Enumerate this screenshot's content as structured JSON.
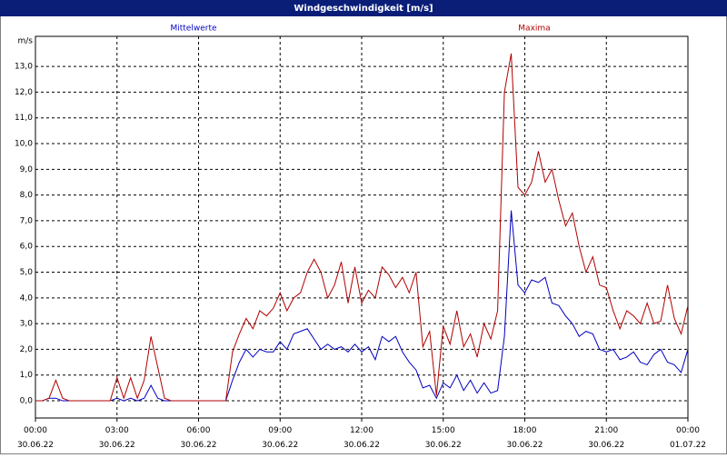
{
  "chart_data": {
    "type": "line",
    "title": "Windgeschwindigkeit [m/s]",
    "ylabel": "m/s",
    "x": [
      0,
      0.25,
      0.5,
      0.75,
      1,
      1.25,
      1.5,
      1.75,
      2,
      2.25,
      2.5,
      2.75,
      3,
      3.25,
      3.5,
      3.75,
      4,
      4.25,
      4.5,
      4.75,
      5,
      5.25,
      5.5,
      5.75,
      6,
      6.25,
      6.5,
      6.75,
      7,
      7.25,
      7.5,
      7.75,
      8,
      8.25,
      8.5,
      8.75,
      9,
      9.25,
      9.5,
      9.75,
      10,
      10.25,
      10.5,
      10.75,
      11,
      11.25,
      11.5,
      11.75,
      12,
      12.25,
      12.5,
      12.75,
      13,
      13.25,
      13.5,
      13.75,
      14,
      14.25,
      14.5,
      14.75,
      15,
      15.25,
      15.5,
      15.75,
      16,
      16.25,
      16.5,
      16.75,
      17,
      17.25,
      17.5,
      17.75,
      18,
      18.25,
      18.5,
      18.75,
      19,
      19.25,
      19.5,
      19.75,
      20,
      20.25,
      20.5,
      20.75,
      21,
      21.25,
      21.5,
      21.75,
      22,
      22.25,
      22.5,
      22.75,
      23,
      23.25,
      23.5,
      23.75,
      24
    ],
    "series": [
      {
        "name": "Mittelwerte",
        "color": "#0000c0",
        "values": [
          0,
          0,
          0.1,
          0.1,
          0,
          0,
          0,
          0,
          0,
          0,
          0,
          0,
          0.1,
          0,
          0.1,
          0,
          0.1,
          0.6,
          0.1,
          0,
          0,
          0,
          0,
          0,
          0,
          0,
          0,
          0,
          0,
          0.8,
          1.5,
          2.0,
          1.7,
          2.0,
          1.9,
          1.9,
          2.3,
          2.0,
          2.6,
          2.7,
          2.8,
          2.4,
          2.0,
          2.2,
          2.0,
          2.1,
          1.9,
          2.2,
          1.9,
          2.1,
          1.6,
          2.5,
          2.3,
          2.5,
          1.9,
          1.5,
          1.2,
          0.5,
          0.6,
          0.1,
          0.7,
          0.5,
          1.0,
          0.4,
          0.8,
          0.3,
          0.7,
          0.3,
          0.4,
          2.5,
          7.4,
          4.5,
          4.2,
          4.7,
          4.6,
          4.8,
          3.8,
          3.7,
          3.3,
          3.0,
          2.5,
          2.7,
          2.6,
          2.0,
          1.9,
          2.0,
          1.6,
          1.7,
          1.9,
          1.5,
          1.4,
          1.8,
          2.0,
          1.5,
          1.4,
          1.1,
          2.0
        ]
      },
      {
        "name": "Maxima",
        "color": "#b00000",
        "values": [
          0,
          0,
          0.1,
          0.8,
          0.1,
          0,
          0,
          0,
          0,
          0,
          0,
          0,
          0.9,
          0.1,
          0.9,
          0.1,
          0.8,
          2.5,
          1.3,
          0.1,
          0,
          0,
          0,
          0,
          0,
          0,
          0,
          0,
          0,
          1.9,
          2.6,
          3.2,
          2.8,
          3.5,
          3.3,
          3.6,
          4.2,
          3.5,
          4.0,
          4.2,
          5.0,
          5.5,
          5.0,
          4.0,
          4.5,
          5.4,
          3.8,
          5.2,
          3.8,
          4.3,
          4.0,
          5.2,
          4.9,
          4.4,
          4.8,
          4.2,
          5.0,
          2.1,
          2.7,
          0.2,
          2.9,
          2.2,
          3.5,
          2.1,
          2.6,
          1.7,
          3.0,
          2.4,
          3.5,
          12.0,
          13.5,
          8.3,
          8.0,
          8.5,
          9.7,
          8.5,
          9.0,
          7.8,
          6.8,
          7.3,
          6.0,
          5.0,
          5.6,
          4.5,
          4.4,
          3.5,
          2.8,
          3.5,
          3.3,
          3.0,
          3.8,
          3.0,
          3.1,
          4.5,
          3.2,
          2.6,
          3.7
        ]
      }
    ],
    "xlim": [
      0,
      24
    ],
    "xticks": [
      {
        "value": 0,
        "label": "00:00\n30.06.22"
      },
      {
        "value": 3,
        "label": "03:00\n30.06.22"
      },
      {
        "value": 6,
        "label": "06:00\n30.06.22"
      },
      {
        "value": 9,
        "label": "09:00\n30.06.22"
      },
      {
        "value": 12,
        "label": "12:00\n30.06.22"
      },
      {
        "value": 15,
        "label": "15:00\n30.06.22"
      },
      {
        "value": 18,
        "label": "18:00\n30.06.22"
      },
      {
        "value": 21,
        "label": "21:00\n30.06.22"
      },
      {
        "value": 24,
        "label": "00:00\n01.07.22"
      }
    ],
    "ylim": [
      -0.67,
      14.17
    ],
    "yticks": [
      {
        "value": 0,
        "label": "0,0"
      },
      {
        "value": 1,
        "label": "1,0"
      },
      {
        "value": 2,
        "label": "2,0"
      },
      {
        "value": 3,
        "label": "3,0"
      },
      {
        "value": 4,
        "label": "4,0"
      },
      {
        "value": 5,
        "label": "5,0"
      },
      {
        "value": 6,
        "label": "6,0"
      },
      {
        "value": 7,
        "label": "7,0"
      },
      {
        "value": 8,
        "label": "8,0"
      },
      {
        "value": 9,
        "label": "9,0"
      },
      {
        "value": 10,
        "label": "10,0"
      },
      {
        "value": 11,
        "label": "11,0"
      },
      {
        "value": 12,
        "label": "12,0"
      },
      {
        "value": 13,
        "label": "13,0"
      }
    ],
    "grid": true
  }
}
